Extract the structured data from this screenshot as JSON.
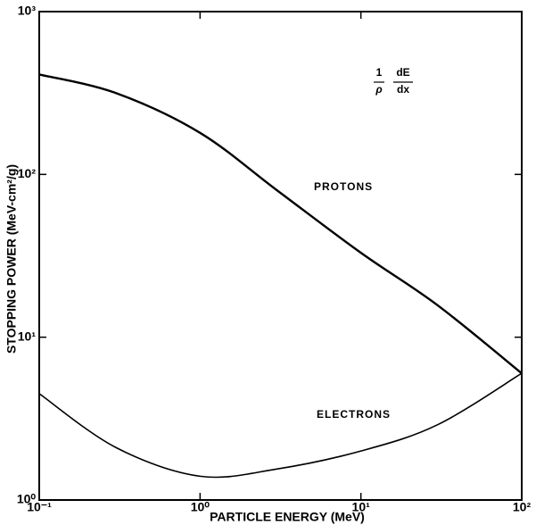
{
  "chart_data": {
    "type": "line",
    "xlabel": "PARTICLE ENERGY (MeV)",
    "ylabel": "STOPPING POWER (MeV-cm²/g)",
    "annotation": {
      "num1": "1",
      "den1": "ρ",
      "num2": "dE",
      "den2": "dx"
    },
    "x": [
      0.1,
      0.3,
      1,
      3,
      10,
      30,
      100
    ],
    "series": [
      {
        "name": "PROTONS",
        "color": "#000000",
        "values": [
          411,
          316,
          180,
          80,
          33,
          15.7,
          6
        ]
      },
      {
        "name": "ELECTRONS",
        "color": "#000000",
        "values": [
          4.5,
          2.1,
          1.4,
          1.55,
          2.0,
          2.9,
          6
        ]
      }
    ],
    "xscale": "log",
    "yscale": "log",
    "xlim": [
      0.1,
      100
    ],
    "ylim": [
      1,
      1000
    ],
    "xticks": [
      {
        "value": 0.1,
        "label": "10⁻¹"
      },
      {
        "value": 1,
        "label": "10⁰"
      },
      {
        "value": 10,
        "label": "10¹"
      },
      {
        "value": 100,
        "label": "10²"
      }
    ],
    "yticks": [
      {
        "value": 1,
        "label": "10⁰"
      },
      {
        "value": 10,
        "label": "10¹"
      },
      {
        "value": 100,
        "label": "10²"
      },
      {
        "value": 1000,
        "label": "10³"
      }
    ],
    "grid": false
  }
}
